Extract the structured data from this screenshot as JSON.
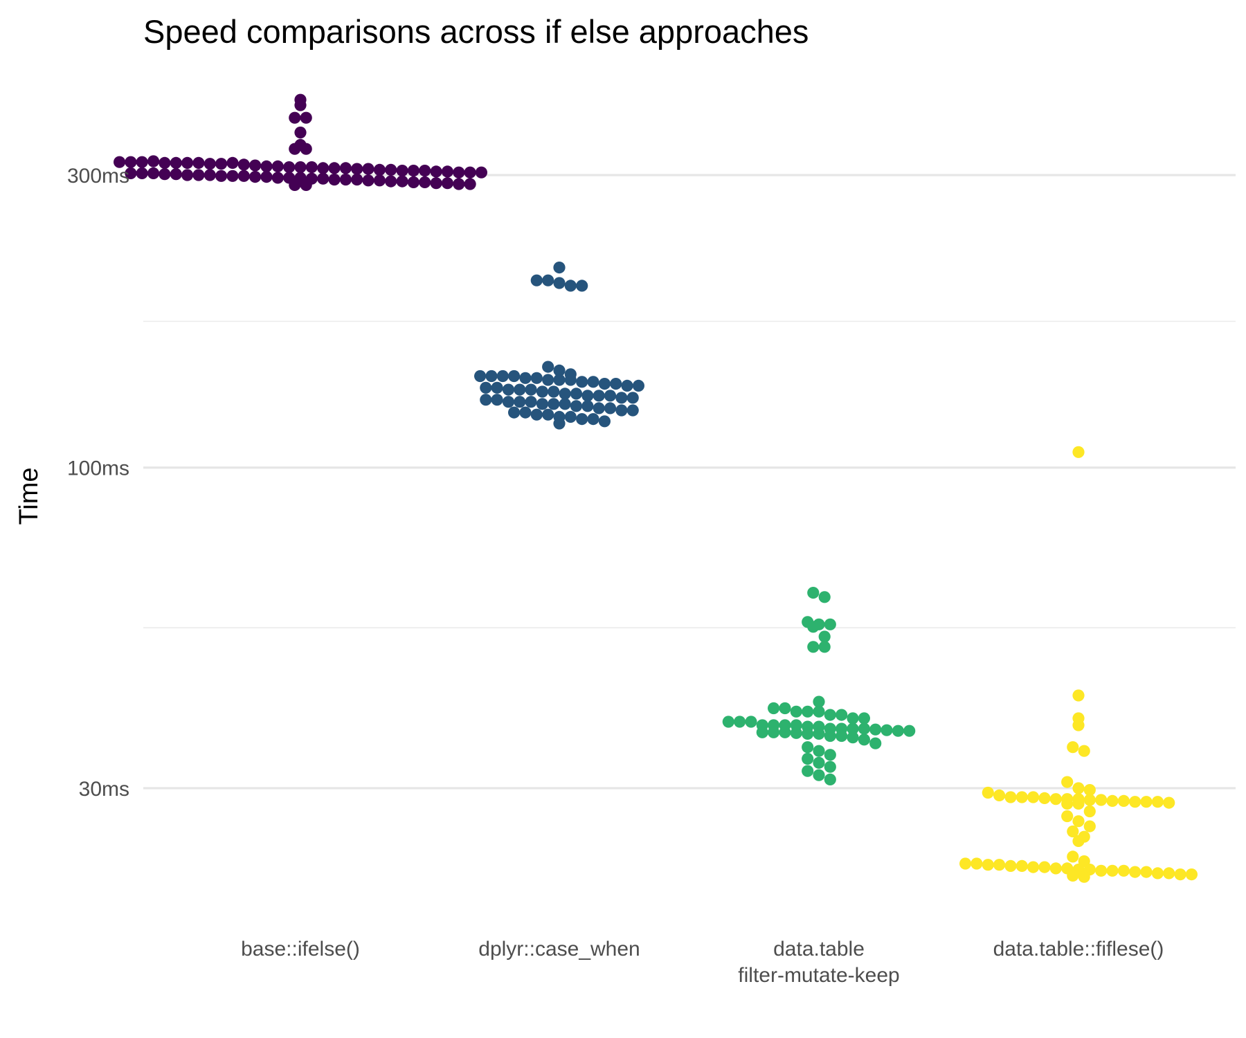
{
  "chart_data": {
    "type": "scatter",
    "subtype": "beeswarm",
    "title": "Speed comparisons across if else approaches",
    "xlabel": "",
    "ylabel": "Time",
    "y_scale": "log",
    "y_unit": "ms",
    "ylim": [
      17.5,
      450
    ],
    "y_ticks": [
      {
        "value": 30,
        "label": "30ms"
      },
      {
        "value": 100,
        "label": "100ms"
      },
      {
        "value": 300,
        "label": "300ms"
      }
    ],
    "y_minor_ticks": [
      54.8,
      173.2
    ],
    "grid": true,
    "legend": "none",
    "categories": [
      "base::ifelse()",
      "dplyr::case_when",
      "data.table\nfilter-mutate-keep",
      "data.table::fiflese()"
    ],
    "series": [
      {
        "category": "base::ifelse()",
        "color": "#440154",
        "values": [
          398,
          390,
          372,
          372,
          352,
          336,
          331,
          331,
          315,
          315,
          315,
          316,
          314,
          314,
          314,
          314,
          313,
          313,
          314,
          312,
          311,
          310,
          310,
          309,
          309,
          309,
          308,
          308,
          308,
          307,
          307,
          306,
          306,
          305,
          305,
          305,
          304,
          304,
          303,
          303,
          303,
          302,
          302,
          302,
          301,
          301,
          300,
          300,
          300,
          299,
          299,
          299,
          298,
          298,
          297,
          297,
          297,
          296,
          296,
          295,
          295,
          295,
          294,
          294,
          293,
          293,
          292,
          292,
          291,
          291,
          290,
          290,
          289,
          289
        ]
      },
      {
        "category": "dplyr::case_when",
        "color": "#26547c",
        "values": [
          212,
          202,
          202,
          200,
          198,
          198,
          146,
          144,
          142,
          141,
          141,
          141,
          141,
          140,
          140,
          139,
          139,
          139,
          138,
          138,
          137,
          137,
          136,
          136,
          135,
          135,
          134,
          134,
          134,
          133,
          133,
          132,
          132,
          131,
          131,
          131,
          130,
          130,
          129,
          129,
          128,
          128,
          128,
          127,
          127,
          127,
          126,
          126,
          125,
          125,
          124,
          124,
          123,
          123,
          122,
          122,
          121,
          121,
          120,
          120,
          119,
          118
        ]
      },
      {
        "category": "data.table\nfilter-mutate-keep",
        "color": "#2db26e",
        "values": [
          62.5,
          61.5,
          56.0,
          55.5,
          55.5,
          55.0,
          53.0,
          51.0,
          51.0,
          41.5,
          40.5,
          40.5,
          40.0,
          40.0,
          40.0,
          39.5,
          39.5,
          39.0,
          39.0,
          38.5,
          38.5,
          38.5,
          38.0,
          38.0,
          38.0,
          38.0,
          37.8,
          37.8,
          37.5,
          37.5,
          37.5,
          37.5,
          37.4,
          37.3,
          37.2,
          37.2,
          37.0,
          37.0,
          37.0,
          36.9,
          36.8,
          36.8,
          36.5,
          36.5,
          36.3,
          36.0,
          35.5,
          35.0,
          34.5,
          34.0,
          33.5,
          33.0,
          32.5,
          32.0,
          31.5,
          31.0
        ]
      },
      {
        "category": "data.table::fiflese()",
        "color": "#fde725",
        "values": [
          106,
          42.5,
          39.0,
          38.0,
          35.0,
          34.5,
          30.7,
          30.0,
          29.8,
          29.5,
          29.2,
          29.0,
          29.0,
          29.0,
          28.9,
          28.8,
          28.8,
          28.8,
          28.7,
          28.7,
          28.6,
          28.6,
          28.5,
          28.5,
          28.5,
          28.4,
          28.3,
          28.3,
          27.5,
          27.0,
          26.5,
          26.0,
          25.5,
          25.0,
          24.6,
          23.2,
          22.8,
          22.6,
          22.6,
          22.5,
          22.5,
          22.4,
          22.4,
          22.3,
          22.3,
          22.2,
          22.2,
          22.1,
          22.1,
          22.0,
          22.0,
          22.0,
          21.9,
          21.9,
          21.8,
          21.8,
          21.7,
          21.7,
          21.6,
          21.5
        ]
      }
    ]
  }
}
